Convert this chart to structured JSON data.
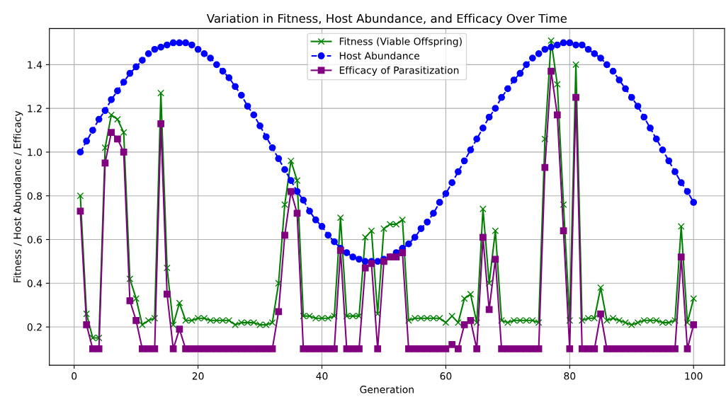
{
  "chart_data": {
    "type": "line",
    "title": "Variation in Fitness, Host Abundance, and Efficacy Over Time",
    "xlabel": "Generation",
    "ylabel": "Fitness / Host Abundance / Efficacy",
    "x": [
      1,
      2,
      3,
      4,
      5,
      6,
      7,
      8,
      9,
      10,
      11,
      12,
      13,
      14,
      15,
      16,
      17,
      18,
      19,
      20,
      21,
      22,
      23,
      24,
      25,
      26,
      27,
      28,
      29,
      30,
      31,
      32,
      33,
      34,
      35,
      36,
      37,
      38,
      39,
      40,
      41,
      42,
      43,
      44,
      45,
      46,
      47,
      48,
      49,
      50,
      51,
      52,
      53,
      54,
      55,
      56,
      57,
      58,
      59,
      60,
      61,
      62,
      63,
      64,
      65,
      66,
      67,
      68,
      69,
      70,
      71,
      72,
      73,
      74,
      75,
      76,
      77,
      78,
      79,
      80,
      81,
      82,
      83,
      84,
      85,
      86,
      87,
      88,
      89,
      90,
      91,
      92,
      93,
      94,
      95,
      96,
      97,
      98,
      99,
      100
    ],
    "series": [
      {
        "name": "Fitness (Viable Offspring)",
        "color": "#008000",
        "marker": "cross",
        "line_style": "solid",
        "values": [
          0.8,
          0.26,
          0.15,
          0.15,
          1.02,
          1.17,
          1.15,
          1.09,
          0.42,
          0.33,
          0.21,
          0.23,
          0.24,
          1.27,
          0.47,
          0.21,
          0.31,
          0.23,
          0.23,
          0.24,
          0.24,
          0.23,
          0.23,
          0.23,
          0.23,
          0.21,
          0.22,
          0.22,
          0.22,
          0.21,
          0.21,
          0.22,
          0.4,
          0.76,
          0.96,
          0.87,
          0.25,
          0.25,
          0.24,
          0.24,
          0.24,
          0.25,
          0.7,
          0.25,
          0.25,
          0.25,
          0.61,
          0.64,
          0.26,
          0.65,
          0.67,
          0.67,
          0.69,
          0.23,
          0.24,
          0.24,
          0.24,
          0.24,
          0.24,
          0.22,
          0.25,
          0.22,
          0.33,
          0.35,
          0.22,
          0.74,
          0.4,
          0.64,
          0.23,
          0.22,
          0.23,
          0.23,
          0.23,
          0.23,
          0.22,
          1.06,
          1.51,
          1.31,
          0.76,
          0.23,
          1.4,
          0.23,
          0.24,
          0.24,
          0.38,
          0.23,
          0.24,
          0.23,
          0.22,
          0.21,
          0.22,
          0.23,
          0.23,
          0.23,
          0.22,
          0.22,
          0.23,
          0.66,
          0.22,
          0.33
        ]
      },
      {
        "name": "Host Abundance",
        "color": "#0000ff",
        "marker": "circle",
        "line_style": "dashed",
        "values": [
          1.0,
          1.05,
          1.1,
          1.15,
          1.19,
          1.24,
          1.28,
          1.32,
          1.36,
          1.39,
          1.42,
          1.45,
          1.47,
          1.48,
          1.49,
          1.5,
          1.5,
          1.5,
          1.49,
          1.47,
          1.45,
          1.43,
          1.4,
          1.37,
          1.34,
          1.3,
          1.26,
          1.21,
          1.17,
          1.12,
          1.07,
          1.02,
          0.97,
          0.92,
          0.87,
          0.82,
          0.78,
          0.73,
          0.69,
          0.66,
          0.62,
          0.59,
          0.56,
          0.54,
          0.52,
          0.51,
          0.5,
          0.5,
          0.5,
          0.51,
          0.52,
          0.54,
          0.56,
          0.58,
          0.61,
          0.65,
          0.68,
          0.72,
          0.77,
          0.81,
          0.86,
          0.91,
          0.96,
          1.01,
          1.06,
          1.11,
          1.16,
          1.2,
          1.25,
          1.29,
          1.33,
          1.36,
          1.4,
          1.43,
          1.45,
          1.47,
          1.48,
          1.49,
          1.5,
          1.5,
          1.49,
          1.49,
          1.47,
          1.45,
          1.43,
          1.4,
          1.37,
          1.33,
          1.29,
          1.25,
          1.21,
          1.16,
          1.11,
          1.06,
          1.01,
          0.96,
          0.91,
          0.86,
          0.82,
          0.77
        ]
      },
      {
        "name": "Efficacy of Parasitization",
        "color": "#800080",
        "marker": "square",
        "line_style": "solid",
        "values": [
          0.73,
          0.21,
          0.1,
          0.1,
          0.95,
          1.09,
          1.06,
          1.0,
          0.32,
          0.23,
          0.1,
          0.1,
          0.1,
          1.13,
          0.35,
          0.1,
          0.19,
          0.1,
          0.1,
          0.1,
          0.1,
          0.1,
          0.1,
          0.1,
          0.1,
          0.1,
          0.1,
          0.1,
          0.1,
          0.1,
          0.1,
          0.1,
          0.27,
          0.62,
          0.82,
          0.72,
          0.1,
          0.1,
          0.1,
          0.1,
          0.1,
          0.1,
          0.55,
          0.1,
          0.1,
          0.1,
          0.47,
          0.49,
          0.1,
          0.5,
          0.52,
          0.52,
          0.54,
          0.1,
          0.1,
          0.1,
          0.1,
          0.1,
          0.1,
          0.1,
          0.12,
          0.1,
          0.21,
          0.23,
          0.1,
          0.61,
          0.28,
          0.51,
          0.1,
          0.1,
          0.1,
          0.1,
          0.1,
          0.1,
          0.1,
          0.93,
          1.37,
          1.17,
          0.64,
          0.1,
          1.25,
          0.1,
          0.1,
          0.1,
          0.26,
          0.1,
          0.1,
          0.1,
          0.1,
          0.1,
          0.1,
          0.1,
          0.1,
          0.1,
          0.1,
          0.1,
          0.1,
          0.52,
          0.1,
          0.21
        ]
      }
    ],
    "xlim": [
      -4,
      105
    ],
    "ylim": [
      0.025,
      1.565
    ],
    "xticks": [
      0,
      20,
      40,
      60,
      80,
      100
    ],
    "yticks": [
      0.2,
      0.4,
      0.6,
      0.8,
      {
        "value": 1.0,
        "label": "1.0"
      },
      1.2,
      1.4
    ],
    "grid": true,
    "legend": "top"
  }
}
